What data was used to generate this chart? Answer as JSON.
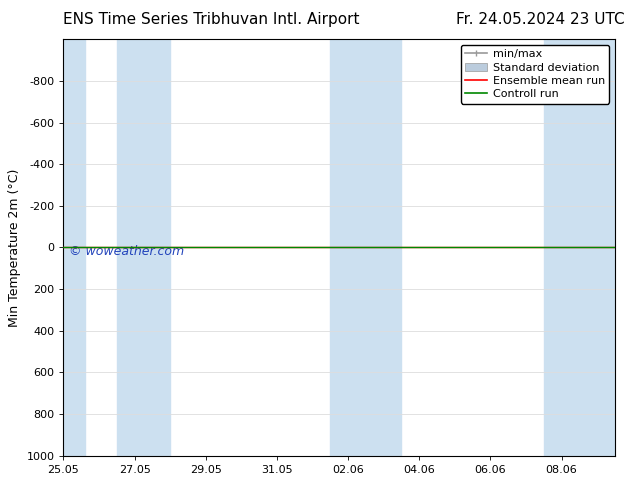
{
  "title_left": "ENS Time Series Tribhuvan Intl. Airport",
  "title_right": "Fr. 24.05.2024 23 UTC",
  "ylabel": "Min Temperature 2m (°C)",
  "watermark": "© woweather.com",
  "ylim_bottom": 1000,
  "ylim_top": -1000,
  "yticks": [
    -800,
    -600,
    -400,
    -200,
    0,
    200,
    400,
    600,
    800,
    1000
  ],
  "xtick_labels": [
    "25.05",
    "27.05",
    "29.05",
    "31.05",
    "02.06",
    "04.06",
    "06.06",
    "08.06"
  ],
  "x_min": 0.0,
  "x_max": 15.5,
  "shaded_color": "#cce0f0",
  "control_run_color": "#008800",
  "ensemble_mean_color": "#ff0000",
  "minmax_color": "#999999",
  "stddev_color": "#bbccdd",
  "legend_labels": [
    "min/max",
    "Standard deviation",
    "Ensemble mean run",
    "Controll run"
  ],
  "font_size_title": 11,
  "font_size_legend": 8,
  "font_size_ticks": 8,
  "font_size_label": 9,
  "font_size_watermark": 9,
  "watermark_color": "#2244bb",
  "grid_color": "#dddddd",
  "background_color": "#ffffff"
}
